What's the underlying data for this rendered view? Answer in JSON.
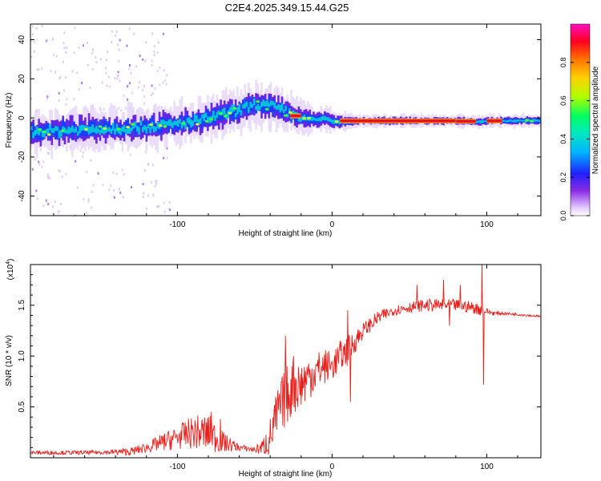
{
  "title": "C2E4.2025.349.15.44.G25",
  "colors": {
    "snr_line": "#e8201c",
    "axis": "#000000",
    "spectrogram_bg": "#ffffff"
  },
  "chart_data": [
    {
      "type": "heatmap",
      "name": "spectrogram",
      "xlabel": "Height of straight line (km)",
      "ylabel": "Frequency (Hz)",
      "xlim": [
        -195,
        135
      ],
      "ylim": [
        -50,
        48
      ],
      "xticks": [
        -100,
        0,
        100
      ],
      "xtick_labels": [
        "-100",
        "0",
        "100"
      ],
      "yticks": [
        -40,
        -20,
        0,
        20,
        40
      ],
      "ytick_labels": [
        "-40",
        "-20",
        "0",
        "20",
        "40"
      ],
      "ridge": {
        "x": [
          -195,
          -160,
          -130,
          -110,
          -90,
          -75,
          -60,
          -50,
          -40,
          -30,
          -20,
          -10,
          -5,
          0,
          5,
          20,
          40,
          60,
          80,
          95,
          100,
          110,
          135
        ],
        "y": [
          -7,
          -6,
          -5,
          -4,
          -2,
          1,
          4,
          7,
          6,
          3,
          0,
          -1,
          0,
          -2,
          -2,
          -1.5,
          -1.5,
          -1.5,
          -1.5,
          -2,
          -1.5,
          -1.5,
          -1.5
        ]
      },
      "hot_segments_x": [
        [
          -27,
          -20
        ],
        [
          5,
          80
        ],
        [
          80,
          93
        ],
        [
          100,
          110
        ]
      ],
      "colorbar": {
        "label": "Normalized spectral amplitude",
        "range": [
          0,
          1
        ],
        "ticks": [
          0.0,
          0.2,
          0.4,
          0.6,
          0.8
        ],
        "tick_labels": [
          "0.0",
          "0.2",
          "0.4",
          "0.6",
          "0.8"
        ]
      }
    },
    {
      "type": "line",
      "name": "snr",
      "xlabel": "Height of straight line (km)",
      "ylabel": "SNR (10 * v/v)",
      "y_multiplier": "(x10",
      "y_multiplier_exp": "4",
      "y_multiplier_close": ")",
      "xlim": [
        -195,
        135
      ],
      "ylim": [
        0,
        1.9
      ],
      "xticks": [
        -100,
        0,
        100
      ],
      "xtick_labels": [
        "-100",
        "0",
        "100"
      ],
      "yticks": [
        0.5,
        1.0,
        1.5
      ],
      "ytick_labels": [
        "0.5",
        "1.0",
        "1.5"
      ],
      "envelope": {
        "x": [
          -195,
          -160,
          -130,
          -120,
          -110,
          -100,
          -90,
          -80,
          -75,
          -70,
          -60,
          -50,
          -45,
          -40,
          -35,
          -30,
          -25,
          -20,
          -15,
          -10,
          -5,
          0,
          5,
          10,
          15,
          20,
          30,
          40,
          50,
          60,
          70,
          80,
          90,
          95,
          100,
          105,
          110,
          120,
          135
        ],
        "y": [
          0.05,
          0.05,
          0.06,
          0.1,
          0.15,
          0.2,
          0.25,
          0.24,
          0.2,
          0.15,
          0.1,
          0.08,
          0.1,
          0.2,
          0.45,
          0.6,
          0.7,
          0.72,
          0.8,
          0.85,
          0.9,
          0.9,
          1.0,
          1.05,
          1.15,
          1.25,
          1.38,
          1.45,
          1.48,
          1.5,
          1.5,
          1.5,
          1.48,
          1.46,
          1.44,
          1.42,
          1.42,
          1.41,
          1.39
        ]
      },
      "noise": {
        "x": [
          -195,
          -150,
          -120,
          -100,
          -80,
          -70,
          -60,
          -50,
          -45,
          -40,
          -30,
          -20,
          -10,
          0,
          10,
          20,
          40,
          60,
          80,
          95,
          100,
          110,
          135
        ],
        "a": [
          0.02,
          0.02,
          0.05,
          0.12,
          0.2,
          0.1,
          0.03,
          0.03,
          0.08,
          0.2,
          0.3,
          0.25,
          0.2,
          0.15,
          0.15,
          0.08,
          0.05,
          0.06,
          0.06,
          0.06,
          0.03,
          0.015,
          0.01
        ]
      },
      "spikes": [
        {
          "x": -72,
          "y": 0.38
        },
        {
          "x": -78,
          "y": 0.45
        },
        {
          "x": -30,
          "y": 1.2
        },
        {
          "x": -25,
          "y": 1.0
        },
        {
          "x": 10,
          "y": 1.45
        },
        {
          "x": 12,
          "y": 0.55
        },
        {
          "x": 55,
          "y": 1.7
        },
        {
          "x": 72,
          "y": 1.75
        },
        {
          "x": 76,
          "y": 1.3
        },
        {
          "x": 83,
          "y": 1.7
        },
        {
          "x": 97,
          "y": 1.9
        },
        {
          "x": 98,
          "y": 0.72
        }
      ]
    }
  ]
}
